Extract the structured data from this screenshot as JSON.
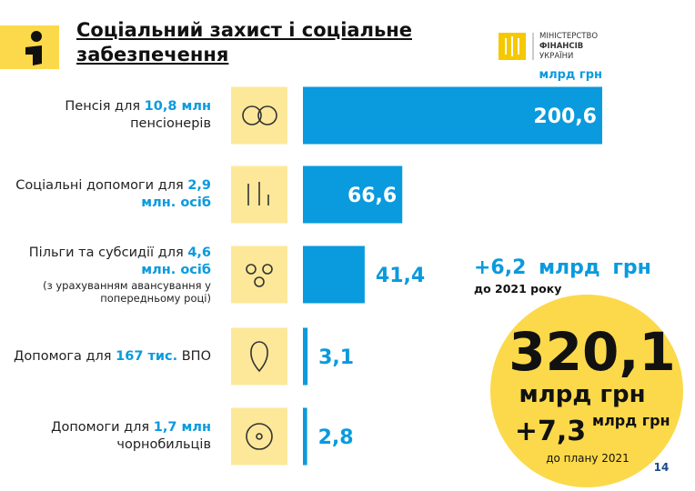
{
  "chart_data": {
    "type": "hbar",
    "title": "Соціальний захист і соціальне забезпечення",
    "unit": "млрд грн",
    "categories": [
      [
        {
          "text": "Пенсія для "
        },
        {
          "text": "10,8 млн",
          "emphasis": true
        },
        {
          "text": " пенсіонерів"
        }
      ],
      [
        {
          "text": "Соціальні допомоги для "
        },
        {
          "text": "2,9 млн. осіб",
          "emphasis": true
        }
      ],
      [
        {
          "text": "Пільги та субсидії для "
        },
        {
          "text": "4,6 млн. осіб",
          "emphasis": true
        },
        {
          "text": "(з урахуванням авансування у попередньому році)",
          "note": true
        }
      ],
      [
        {
          "text": "Допомога для "
        },
        {
          "text": "167 тис.",
          "emphasis": true
        },
        {
          "text": " ВПО"
        }
      ],
      [
        {
          "text": "Допомоги для "
        },
        {
          "text": "1,7 млн",
          "emphasis": true
        },
        {
          "text": " чорнобильців"
        }
      ]
    ],
    "values": [
      200.6,
      66.6,
      41.4,
      3.1,
      2.8
    ],
    "value_labels": [
      "200,6",
      "66,6",
      "41,4",
      "3,1",
      "2,8"
    ],
    "color": "#0a9ade",
    "annotations": {
      "change": "+6,2 млрд грн",
      "change_note": "до 2021 року"
    },
    "total": {
      "value": "320,1",
      "unit": "млрд грн",
      "delta": "+7,3",
      "delta_unit": "млрд грн",
      "delta_note": "до плану 2021"
    }
  },
  "header": {
    "ministry": [
      "МІНІСТЕРСТВО",
      "ФІНАНСІВ",
      "УКРАЇНИ"
    ]
  },
  "page_number": "14"
}
